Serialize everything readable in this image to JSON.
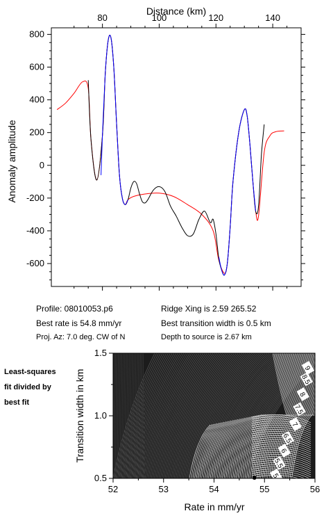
{
  "chart_data": [
    {
      "type": "line",
      "xlabel": "Distance (km)",
      "ylabel": "Anomaly amplitude",
      "xticks": [
        80,
        100,
        120,
        140
      ],
      "yticks": [
        800,
        600,
        400,
        200,
        0,
        -200,
        -400,
        -600
      ],
      "xlim": [
        62,
        150
      ],
      "ylim": [
        -740,
        840
      ],
      "series": [
        {
          "color": "#ff0000",
          "x": [
            64,
            67,
            70,
            73,
            75,
            76,
            78,
            80,
            81,
            82,
            83,
            84,
            85,
            86,
            87,
            88,
            89,
            91,
            95,
            100,
            105,
            110,
            115,
            119,
            121,
            123,
            124,
            125,
            126,
            128,
            130,
            131,
            132,
            133,
            134,
            135,
            137,
            139,
            141,
            144
          ],
          "y": [
            340,
            380,
            440,
            510,
            470,
            150,
            -90,
            180,
            560,
            760,
            780,
            600,
            250,
            -60,
            -200,
            -240,
            -210,
            -190,
            -175,
            -170,
            -190,
            -240,
            -300,
            -400,
            -580,
            -660,
            -600,
            -380,
            -100,
            200,
            340,
            300,
            120,
            -100,
            -280,
            -310,
            80,
            180,
            205,
            210
          ]
        },
        {
          "color": "#000000",
          "x": [
            75,
            76,
            78,
            80,
            81,
            82,
            83,
            84,
            85,
            86,
            87,
            88,
            89,
            90,
            91,
            92,
            93,
            94,
            95,
            96,
            98,
            100,
            102,
            104,
            106,
            108,
            110,
            112,
            114,
            116,
            118,
            119,
            120,
            121,
            122,
            123,
            124,
            125,
            126,
            128,
            130,
            131,
            132,
            133,
            134,
            135,
            136,
            137
          ],
          "y": [
            520,
            150,
            -90,
            180,
            560,
            760,
            780,
            600,
            250,
            -60,
            -200,
            -240,
            -210,
            -140,
            -100,
            -110,
            -170,
            -220,
            -230,
            -210,
            -150,
            -130,
            -160,
            -250,
            -310,
            -380,
            -430,
            -420,
            -330,
            -280,
            -350,
            -330,
            -420,
            -570,
            -640,
            -670,
            -600,
            -380,
            -100,
            200,
            340,
            300,
            120,
            -100,
            -280,
            -250,
            60,
            250
          ]
        },
        {
          "color": "#0000ff",
          "x": [
            79.5,
            80,
            81,
            82,
            83,
            84,
            85,
            86,
            87,
            88,
            89
          ],
          "y": [
            -60,
            180,
            560,
            760,
            780,
            600,
            250,
            -60,
            -200,
            -240,
            -210
          ]
        },
        {
          "color": "#0000ff",
          "x": [
            121,
            122,
            123,
            124,
            125,
            126,
            128,
            130,
            131,
            132,
            133,
            134
          ],
          "y": [
            -560,
            -640,
            -670,
            -600,
            -380,
            -100,
            200,
            340,
            300,
            120,
            -100,
            -280
          ]
        }
      ]
    },
    {
      "type": "contour",
      "xlabel": "Rate in mm/yr",
      "ylabel": "Transition width in km",
      "xticks": [
        52,
        53,
        54,
        55,
        56
      ],
      "yticks": [
        0.5,
        1.0,
        1.5
      ],
      "xlim": [
        52,
        56
      ],
      "ylim": [
        0.5,
        1.5
      ],
      "contour_labels": [
        "9",
        "8.5",
        "8",
        "7.5",
        "7",
        "6.5",
        "6",
        "5.5",
        "5"
      ],
      "best_fit_point": {
        "rate": 54.8,
        "width": 0.5
      }
    }
  ],
  "info": {
    "profile": "Profile: 08010053.p6",
    "best_rate": "Best rate is 54.8 mm/yr",
    "proj_az": "Proj. Az: 7.0 deg. CW of N",
    "ridge_xing": "Ridge Xing is 2.59 265.52",
    "best_width": "Best transition width is 0.5 km",
    "depth": "Depth to source is   2.67 km"
  },
  "side_note": {
    "line1": "Least-squares",
    "line2": "fit divided by",
    "line3": "best fit"
  }
}
